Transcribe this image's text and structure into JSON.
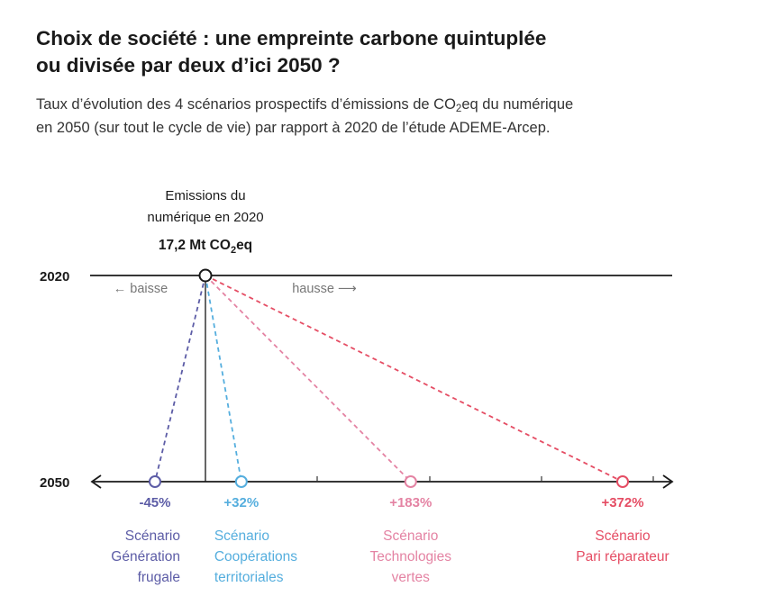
{
  "title_line1": "Choix de société : une empreinte carbone quintuplée",
  "title_line2": "ou divisée par deux d’ici 2050 ?",
  "subtitle_line1_a": "Taux d’évolution des 4 scénarios prospectifs d’émissions de CO",
  "subtitle_line1_sub": "2",
  "subtitle_line1_b": "eq du numérique",
  "subtitle_line2": "en 2050 (sur tout le cycle de vie) par rapport à 2020 de l’étude ADEME-Arcep.",
  "chart_data": {
    "type": "slope",
    "baseline": {
      "year_label": "2020",
      "label_line1": "Emissions du",
      "label_line2": "numérique en 2020",
      "value_text": "17,2 Mt CO",
      "value_sub": "2",
      "value_suffix": "eq",
      "value": 17.2,
      "unit": "Mt CO2eq"
    },
    "target_year_label": "2050",
    "direction_labels": {
      "decrease": "← baisse",
      "increase": "hausse ⟶"
    },
    "scenarios": [
      {
        "change_pct": -45,
        "value_label": "-45%",
        "name_lines": [
          "Scénario",
          "Génération",
          "frugale"
        ],
        "color": "#5c5ca6"
      },
      {
        "change_pct": 32,
        "value_label": "+32%",
        "name_lines": [
          "Scénario",
          "Coopérations",
          "territoriales"
        ],
        "color": "#55aede"
      },
      {
        "change_pct": 183,
        "value_label": "+183%",
        "name_lines": [
          "Scénario",
          "Technologies",
          "vertes"
        ],
        "color": "#e483a3"
      },
      {
        "change_pct": 372,
        "value_label": "+372%",
        "name_lines": [
          "Scénario",
          "Pari réparateur"
        ],
        "color": "#e54d64"
      }
    ],
    "axis_line_color": "#1a1a1a",
    "muted_text_color": "#777777"
  }
}
